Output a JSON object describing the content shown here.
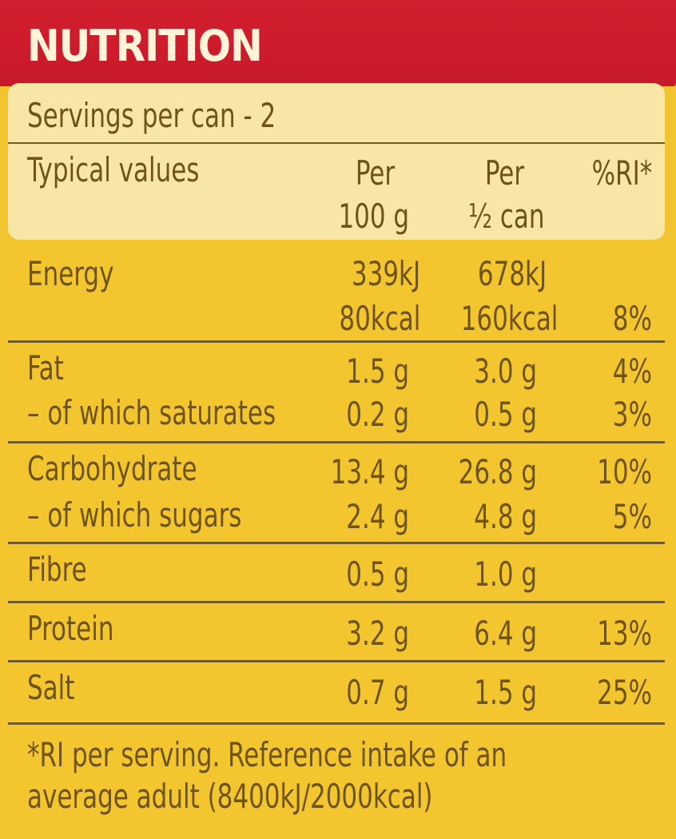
{
  "label": {
    "title": "NUTRITION",
    "servings": "Servings per can - 2",
    "header": {
      "label": "Typical values",
      "col1_line1": "Per",
      "col1_line2": "100 g",
      "col2_line1": "Per",
      "col2_line2": "½ can",
      "col3": "%RI*"
    },
    "rows": [
      {
        "name": "Energy",
        "per100": "339kJ",
        "perHalf": "678kJ",
        "ri": ""
      },
      {
        "name": "",
        "per100": "80kcal",
        "perHalf": "160kcal",
        "ri": "8%"
      },
      {
        "name": "Fat",
        "per100": "1.5 g",
        "perHalf": "3.0 g",
        "ri": "4%"
      },
      {
        "name": "– of which saturates",
        "per100": "0.2 g",
        "perHalf": "0.5 g",
        "ri": "3%"
      },
      {
        "name": "Carbohydrate",
        "per100": "13.4 g",
        "perHalf": "26.8 g",
        "ri": "10%"
      },
      {
        "name": "– of which sugars",
        "per100": "2.4 g",
        "perHalf": "4.8 g",
        "ri": "5%"
      },
      {
        "name": "Fibre",
        "per100": "0.5 g",
        "perHalf": "1.0 g",
        "ri": ""
      },
      {
        "name": "Protein",
        "per100": "3.2 g",
        "perHalf": "6.4 g",
        "ri": "13%"
      },
      {
        "name": "Salt",
        "per100": "0.7 g",
        "perHalf": "1.5 g",
        "ri": "25%"
      }
    ],
    "footnote_line1": "*RI per serving. Reference intake of an",
    "footnote_line2": "average adult (8400kJ/2000kcal)"
  },
  "colors": {
    "banner": "#d21f2e",
    "background": "#f2c530",
    "header_panel": "#f8e6a6",
    "text": "#6f5418"
  }
}
